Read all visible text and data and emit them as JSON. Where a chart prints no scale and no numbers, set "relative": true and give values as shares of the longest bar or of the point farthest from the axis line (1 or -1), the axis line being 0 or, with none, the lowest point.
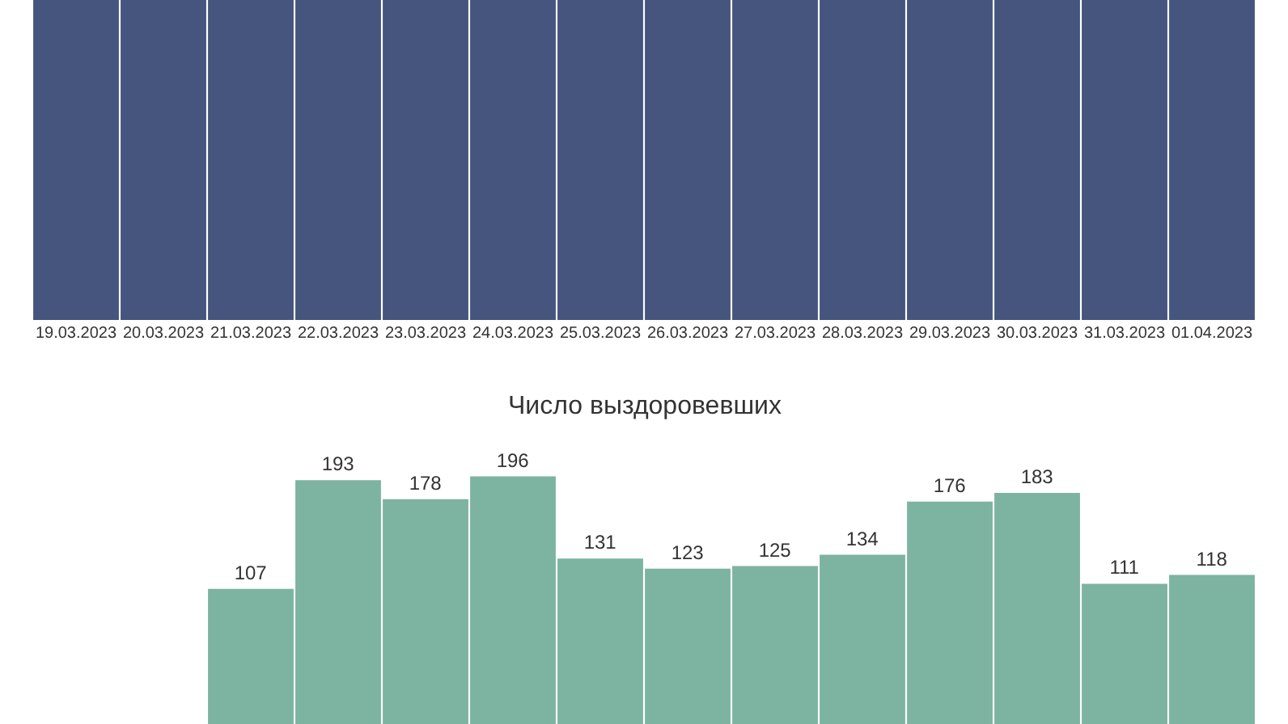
{
  "chart_data": [
    {
      "type": "bar",
      "relative": true,
      "tick_labels": "x",
      "categories": [
        "19.03.2023",
        "20.03.2023",
        "21.03.2023",
        "22.03.2023",
        "23.03.2023",
        "24.03.2023",
        "25.03.2023",
        "26.03.2023",
        "27.03.2023",
        "28.03.2023",
        "29.03.2023",
        "30.03.2023",
        "31.03.2023",
        "01.04.2023"
      ],
      "values": [
        1,
        1,
        1,
        1,
        1,
        1,
        1,
        1,
        1,
        1,
        1,
        1,
        1,
        1
      ],
      "color": "#46557e"
    },
    {
      "type": "bar",
      "title": "Число выздоровевших",
      "tick_labels": false,
      "data_labels": true,
      "categories": [
        null,
        null,
        null,
        null,
        null,
        null,
        null,
        null,
        null,
        null,
        null,
        null,
        null,
        null
      ],
      "values": [
        null,
        null,
        107,
        193,
        178,
        196,
        131,
        123,
        125,
        134,
        176,
        183,
        111,
        118
      ],
      "color": "#7db3a1"
    }
  ]
}
